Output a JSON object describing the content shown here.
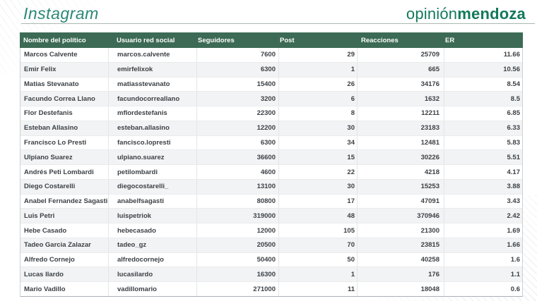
{
  "header": {
    "title": "Instagram",
    "logo_regular": "opinión",
    "logo_bold": "mendoza"
  },
  "colors": {
    "table_header_bg": "#3c6a54",
    "title_green": "#2b8876",
    "logo_green": "#13795b",
    "row_stripe": "#f1f3f5"
  },
  "chart_data": {
    "type": "table",
    "title": "Instagram",
    "columns": [
      "Nombre del político",
      "Usuario red social",
      "Seguidores",
      "Post",
      "Reacciones",
      "ER"
    ],
    "rows": [
      [
        "Marcos Calvente",
        "marcos.calvente",
        "7600",
        "29",
        "25709",
        "11.66"
      ],
      [
        "Emir Felix",
        "emirfelixok",
        "6300",
        "1",
        "665",
        "10.56"
      ],
      [
        "Matias Stevanato",
        "matiasstevanato",
        "15400",
        "26",
        "34176",
        "8.54"
      ],
      [
        "Facundo Correa Llano",
        "facundocorreallano",
        "3200",
        "6",
        "1632",
        "8.5"
      ],
      [
        "Flor Destefanis",
        "mflordestefanis",
        "22300",
        "8",
        "12211",
        "6.85"
      ],
      [
        "Esteban Allasino",
        "esteban.allasino",
        "12200",
        "30",
        "23183",
        "6.33"
      ],
      [
        "Francisco Lo Presti",
        "fancisco.lopresti",
        "6300",
        "34",
        "12481",
        "5.83"
      ],
      [
        "Ulpiano Suarez",
        "ulpiano.suarez",
        "36600",
        "15",
        "30226",
        "5.51"
      ],
      [
        "Andrés Peti Lombardi",
        "petilombardi",
        "4600",
        "22",
        "4218",
        "4.17"
      ],
      [
        "Diego Costarelli",
        "diegocostarelli_",
        "13100",
        "30",
        "15253",
        "3.88"
      ],
      [
        "Anabel Fernandez Sagasti",
        "anabelfsagasti",
        "80800",
        "17",
        "47091",
        "3.43"
      ],
      [
        "Luis Petri",
        "luispetriok",
        "319000",
        "48",
        "370946",
        "2.42"
      ],
      [
        "Hebe Casado",
        "hebecasado",
        "12000",
        "105",
        "21300",
        "1.69"
      ],
      [
        "Tadeo Garcia Zalazar",
        "tadeo_gz",
        "20500",
        "70",
        "23815",
        "1.66"
      ],
      [
        "Alfredo Cornejo",
        "alfredocornejo",
        "50400",
        "50",
        "40258",
        "1.6"
      ],
      [
        "Lucas Ilardo",
        "lucasilardo",
        "16300",
        "1",
        "176",
        "1.1"
      ],
      [
        "Mario Vadillo",
        "vadillomario",
        "271000",
        "11",
        "18048",
        "0.6"
      ]
    ]
  }
}
